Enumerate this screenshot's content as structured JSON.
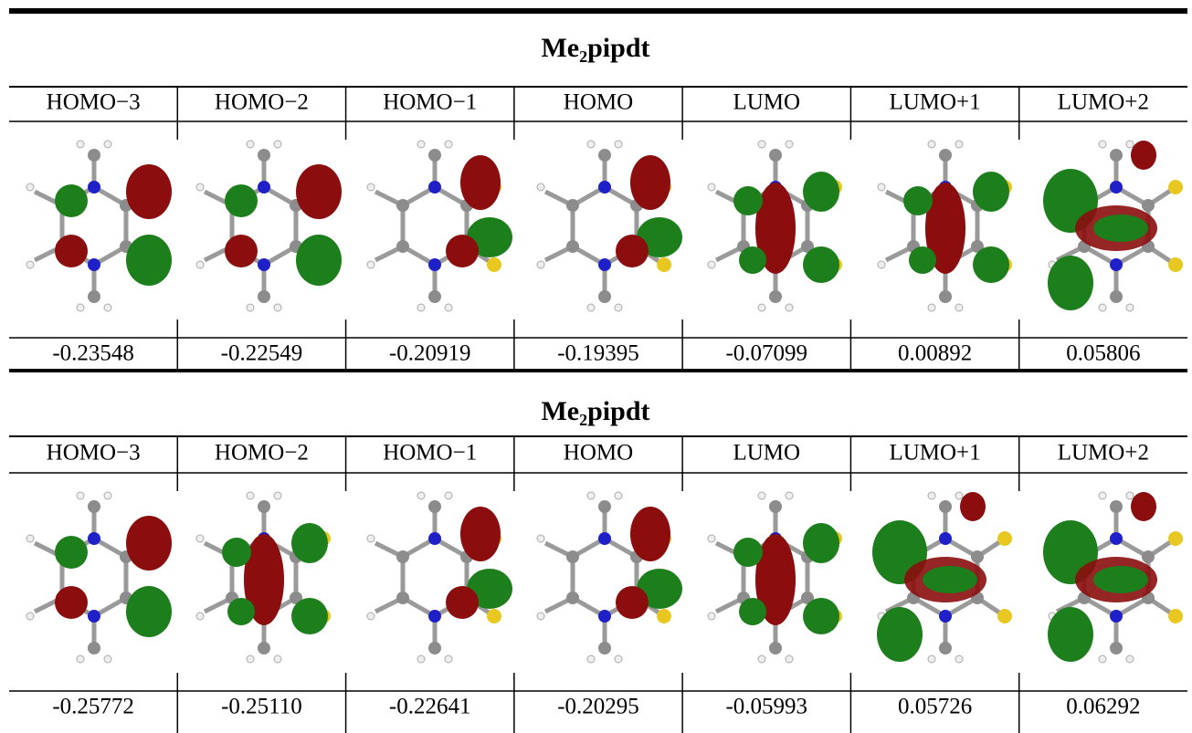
{
  "panels": [
    {
      "title": "Me₂pipdt",
      "headers": [
        "HOMO−3",
        "HOMO−2",
        "HOMO−1",
        "HOMO",
        "LUMO",
        "LUMO+1",
        "LUMO+2"
      ],
      "values": [
        "-0.23548",
        "-0.22549",
        "-0.20919",
        "-0.19395",
        "-0.07099",
        "0.00892",
        "0.05806"
      ]
    },
    {
      "title": "Me₂pipdt",
      "headers": [
        "HOMO−3",
        "HOMO−2",
        "HOMO−1",
        "HOMO",
        "LUMO",
        "LUMO+1",
        "LUMO+2"
      ],
      "values": [
        "-0.25772",
        "-0.25110",
        "-0.22641",
        "-0.20295",
        "-0.05993",
        "0.05726",
        "0.06292"
      ]
    }
  ]
}
